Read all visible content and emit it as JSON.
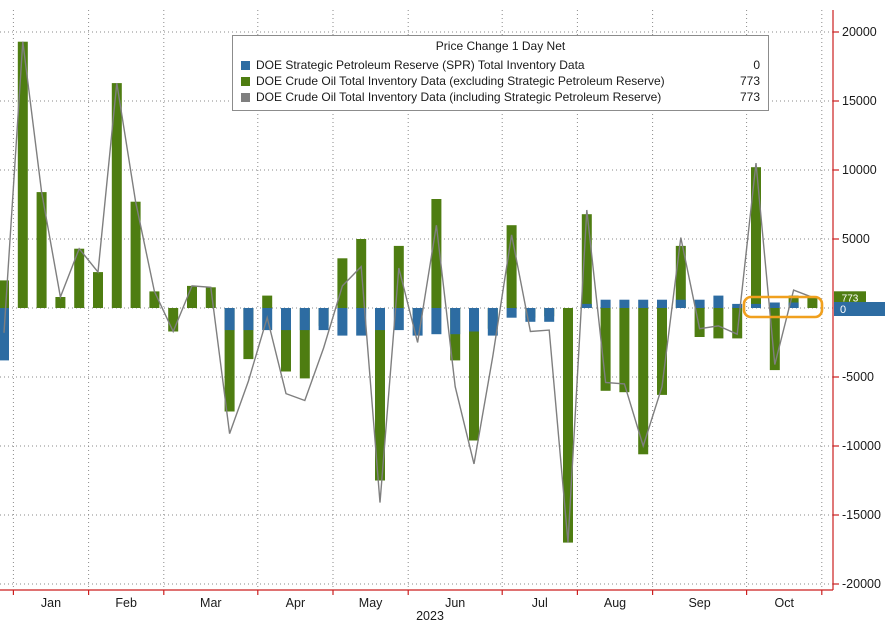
{
  "legend": {
    "title": "Price Change 1 Day Net",
    "rows": [
      {
        "label": "DOE Strategic Petroleum Reserve (SPR) Total Inventory Data",
        "value": "0",
        "color_key": "spr_blue"
      },
      {
        "label": "DOE Crude Oil Total Inventory Data (excluding Strategic Petroleum Reserve)",
        "value": "773",
        "color_key": "crude_green"
      },
      {
        "label": "DOE Crude Oil Total Inventory Data (including Strategic Petroleum Reserve)",
        "value": "773",
        "color_key": "total_gray"
      }
    ]
  },
  "colors": {
    "spr_blue": "#2d6ca2",
    "crude_green": "#4e7d11",
    "total_gray": "#7f7f7f",
    "axis_red": "#cc1f1f",
    "grid_gray": "#8a8a8a",
    "highlight_orange": "#f0a01e",
    "text_dark": "#1a1a1a"
  },
  "axis_chips": {
    "crude_last_value": "773",
    "spr_last_value": "0"
  },
  "chart_data": {
    "type": "bar",
    "title": "Price Change 1 Day Net",
    "frequency": "weekly",
    "y_axis": {
      "range": [
        -20000,
        20000
      ],
      "tick_labels": [
        20000,
        15000,
        10000,
        5000,
        -5000,
        -10000,
        -15000,
        -20000
      ],
      "grid_values": [
        20000,
        15000,
        10000,
        5000,
        0,
        -5000,
        -10000,
        -15000,
        -20000
      ]
    },
    "x_axis": {
      "year": "2023",
      "lead_weeks": 1,
      "months": [
        {
          "label": "Jan",
          "weeks": 4
        },
        {
          "label": "Feb",
          "weeks": 4
        },
        {
          "label": "Mar",
          "weeks": 5
        },
        {
          "label": "Apr",
          "weeks": 4
        },
        {
          "label": "May",
          "weeks": 4
        },
        {
          "label": "Jun",
          "weeks": 5
        },
        {
          "label": "Jul",
          "weeks": 4
        },
        {
          "label": "Aug",
          "weeks": 4
        },
        {
          "label": "Sep",
          "weeks": 5
        },
        {
          "label": "Oct",
          "weeks": 4
        }
      ]
    },
    "series": [
      {
        "name": "DOE Strategic Petroleum Reserve (SPR) Total Inventory Data",
        "kind": "bar",
        "color_key": "spr_blue",
        "last_value": 0,
        "values": [
          -3800,
          0,
          0,
          0,
          0,
          0,
          0,
          0,
          0,
          0,
          0,
          0,
          -1600,
          -1600,
          -1600,
          -1600,
          -1600,
          -1600,
          -2000,
          -2000,
          -1600,
          -1600,
          -2000,
          -1900,
          -1900,
          -1700,
          -2000,
          -700,
          -1000,
          -1000,
          0,
          300,
          600,
          600,
          600,
          600,
          600,
          600,
          900,
          300,
          300,
          400,
          400,
          0
        ]
      },
      {
        "name": "DOE Crude Oil Total Inventory Data (excluding Strategic Petroleum Reserve)",
        "kind": "bar",
        "color_key": "crude_green",
        "last_value": 773,
        "values": [
          2000,
          19300,
          8400,
          800,
          4300,
          2600,
          16300,
          7700,
          1200,
          -1700,
          1600,
          1500,
          -7500,
          -3700,
          900,
          -4600,
          -5100,
          -1300,
          3600,
          5000,
          -12500,
          4500,
          -500,
          7900,
          -3800,
          -9600,
          -1500,
          6000,
          -700,
          -600,
          -17000,
          6800,
          -6000,
          -6100,
          -10600,
          -6300,
          4500,
          -2100,
          -2200,
          -2200,
          10200,
          -4500,
          900,
          773
        ]
      },
      {
        "name": "DOE Crude Oil Total Inventory Data (including Strategic Petroleum Reserve)",
        "kind": "line",
        "color_key": "total_gray",
        "last_value": 773,
        "values": [
          -1800,
          19300,
          8400,
          800,
          4300,
          2600,
          16300,
          7700,
          1200,
          -1700,
          1600,
          1500,
          -9100,
          -5300,
          -700,
          -6200,
          -6700,
          -2900,
          1600,
          3000,
          -14100,
          2900,
          -2500,
          6000,
          -5700,
          -11300,
          -3500,
          5300,
          -1700,
          -1600,
          -17000,
          7100,
          -5400,
          -5500,
          -10000,
          -5700,
          5100,
          -1500,
          -1300,
          -1900,
          10500,
          -4100,
          1300,
          773
        ]
      }
    ],
    "annotation": {
      "shape": "rounded-box",
      "color_key": "highlight_orange",
      "covers": "last weeks near zero line"
    }
  }
}
